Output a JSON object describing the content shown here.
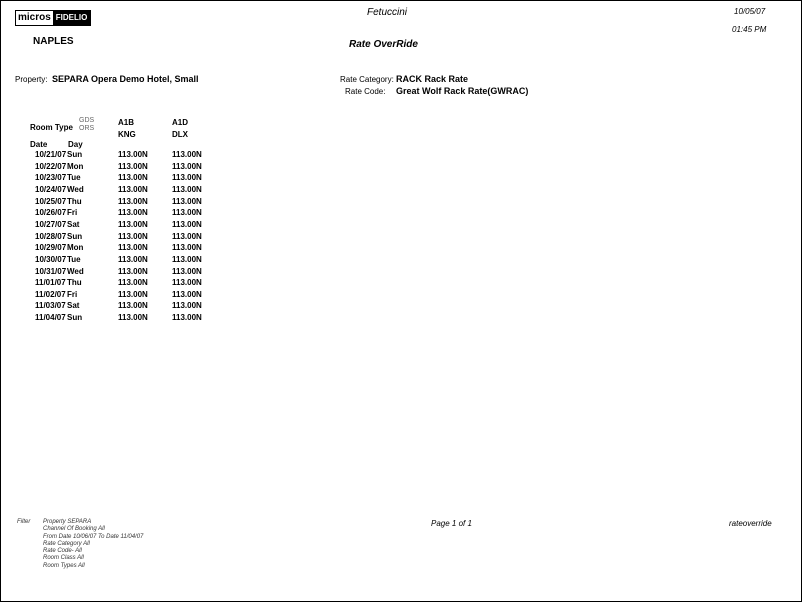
{
  "header": {
    "logo_left": "micros",
    "logo_right": "FIDELIO",
    "hotel": "Fetuccini",
    "date": "10/05/07",
    "time": "01:45 PM",
    "region": "NAPLES",
    "title": "Rate OverRide"
  },
  "info": {
    "property_label": "Property:",
    "property_value": "SEPARA Opera Demo Hotel, Small",
    "rate_category_label": "Rate Category:",
    "rate_category_value": "RACK Rack Rate",
    "rate_code_label": "Rate Code:",
    "rate_code_value": "Great Wolf Rack Rate(GWRAC)"
  },
  "table": {
    "room_type_label": "Room Type",
    "gds_label": "GDS",
    "ors_label": "ORS",
    "date_label": "Date",
    "day_label": "Day",
    "columns": [
      {
        "code": "A1B",
        "sub": "KNG"
      },
      {
        "code": "A1D",
        "sub": "DLX"
      }
    ],
    "rows": [
      {
        "date": "10/21/07",
        "day": "Sun",
        "values": [
          "113.00N",
          "113.00N"
        ]
      },
      {
        "date": "10/22/07",
        "day": "Mon",
        "values": [
          "113.00N",
          "113.00N"
        ]
      },
      {
        "date": "10/23/07",
        "day": "Tue",
        "values": [
          "113.00N",
          "113.00N"
        ]
      },
      {
        "date": "10/24/07",
        "day": "Wed",
        "values": [
          "113.00N",
          "113.00N"
        ]
      },
      {
        "date": "10/25/07",
        "day": "Thu",
        "values": [
          "113.00N",
          "113.00N"
        ]
      },
      {
        "date": "10/26/07",
        "day": "Fri",
        "values": [
          "113.00N",
          "113.00N"
        ]
      },
      {
        "date": "10/27/07",
        "day": "Sat",
        "values": [
          "113.00N",
          "113.00N"
        ]
      },
      {
        "date": "10/28/07",
        "day": "Sun",
        "values": [
          "113.00N",
          "113.00N"
        ]
      },
      {
        "date": "10/29/07",
        "day": "Mon",
        "values": [
          "113.00N",
          "113.00N"
        ]
      },
      {
        "date": "10/30/07",
        "day": "Tue",
        "values": [
          "113.00N",
          "113.00N"
        ]
      },
      {
        "date": "10/31/07",
        "day": "Wed",
        "values": [
          "113.00N",
          "113.00N"
        ]
      },
      {
        "date": "11/01/07",
        "day": "Thu",
        "values": [
          "113.00N",
          "113.00N"
        ]
      },
      {
        "date": "11/02/07",
        "day": "Fri",
        "values": [
          "113.00N",
          "113.00N"
        ]
      },
      {
        "date": "11/03/07",
        "day": "Sat",
        "values": [
          "113.00N",
          "113.00N"
        ]
      },
      {
        "date": "11/04/07",
        "day": "Sun",
        "values": [
          "113.00N",
          "113.00N"
        ]
      }
    ]
  },
  "footer": {
    "filter_label": "Filter",
    "filters": [
      "Property SEPARA",
      "Channel Of Booking All",
      "From Date 10/06/07  To Date 11/04/07",
      "Rate Category    All",
      "Rate Code-  All",
      "Room Class  All",
      "Room Types  All"
    ],
    "page": "Page 1 of 1",
    "report_name": "rateoverride"
  }
}
